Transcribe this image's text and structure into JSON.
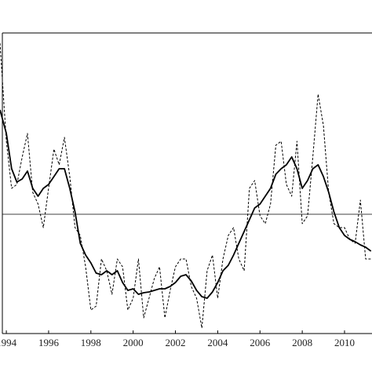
{
  "chart_data": {
    "type": "line",
    "x": [
      1993.7,
      1994,
      1994.25,
      1994.5,
      1994.75,
      1995,
      1995.25,
      1995.5,
      1995.75,
      1996,
      1996.25,
      1996.5,
      1996.75,
      1997,
      1997.25,
      1997.5,
      1997.75,
      1998,
      1998.25,
      1998.5,
      1998.75,
      1999,
      1999.25,
      1999.5,
      1999.75,
      2000,
      2000.25,
      2000.5,
      2000.75,
      2001,
      2001.25,
      2001.5,
      2001.75,
      2002,
      2002.25,
      2002.5,
      2002.75,
      2003,
      2003.25,
      2003.5,
      2003.75,
      2004,
      2004.25,
      2004.5,
      2004.75,
      2005,
      2005.25,
      2005.5,
      2005.75,
      2006,
      2006.25,
      2006.5,
      2006.75,
      2007,
      2007.25,
      2007.5,
      2007.75,
      2008,
      2008.25,
      2008.5,
      2008.75,
      2009,
      2009.25,
      2009.5,
      2009.75,
      2010,
      2010.25,
      2010.5,
      2010.75,
      2011,
      2011.25
    ],
    "series": [
      {
        "color": "#000000",
        "line_style": "dashed",
        "values": [
          218,
          93,
          33,
          38,
          73,
          103,
          28,
          13,
          -17,
          33,
          83,
          63,
          98,
          48,
          -17,
          -27,
          -67,
          -122,
          -117,
          -57,
          -72,
          -102,
          -57,
          -67,
          -122,
          -107,
          -57,
          -132,
          -107,
          -82,
          -67,
          -132,
          -97,
          -67,
          -57,
          -57,
          -92,
          -107,
          -145,
          -72,
          -52,
          -107,
          -57,
          -27,
          -17,
          -57,
          -72,
          33,
          43,
          -2,
          -12,
          13,
          88,
          93,
          38,
          23,
          93,
          -12,
          -2,
          73,
          153,
          113,
          28,
          -12,
          -17,
          -17,
          -32,
          -37,
          18,
          -57,
          -57
        ]
      },
      {
        "color": "#000000",
        "line_style": "solid",
        "values": [
          133,
          103,
          58,
          41,
          45,
          55,
          33,
          23,
          33,
          38,
          48,
          58,
          58,
          33,
          3,
          -37,
          -52,
          -62,
          -75,
          -77,
          -72,
          -77,
          -72,
          -87,
          -97,
          -95,
          -102,
          -100,
          -99,
          -97,
          -95,
          -95,
          -92,
          -87,
          -79,
          -77,
          -85,
          -97,
          -105,
          -107,
          -99,
          -87,
          -72,
          -65,
          -52,
          -37,
          -22,
          -7,
          8,
          13,
          23,
          33,
          51,
          58,
          63,
          73,
          58,
          33,
          43,
          58,
          63,
          48,
          28,
          3,
          -17,
          -27,
          -32,
          -35,
          -39,
          -42,
          -47
        ]
      }
    ],
    "xlim": [
      1993.7,
      2011.3
    ],
    "xticks": [
      1994,
      1996,
      1998,
      2000,
      2002,
      2004,
      2006,
      2008,
      2010
    ],
    "ylim": [
      -152,
      231
    ],
    "hline": 0
  }
}
